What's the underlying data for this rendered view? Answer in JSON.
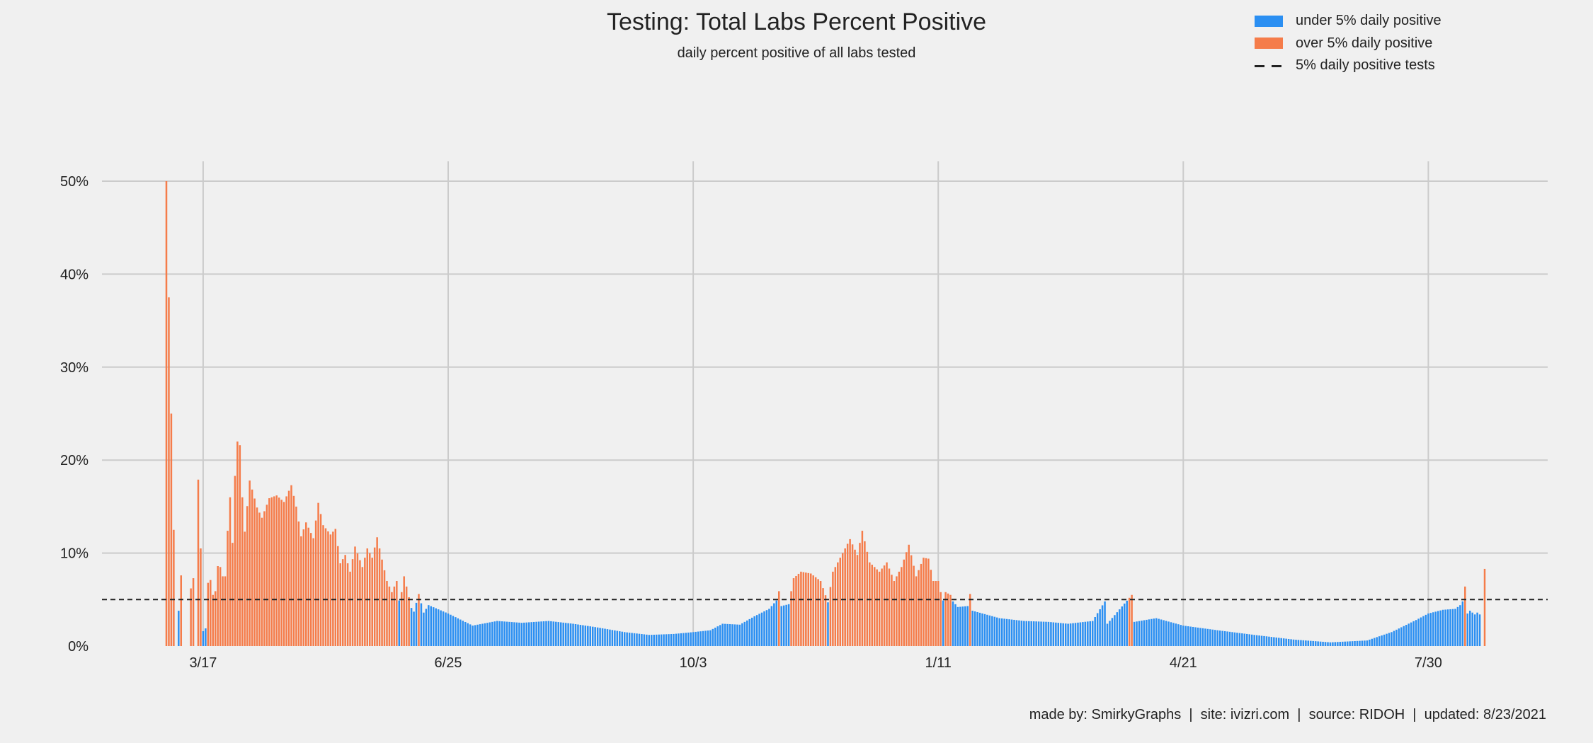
{
  "chart_data": {
    "type": "bar",
    "title": "Testing: Total Labs Percent Positive",
    "subtitle": "daily percent positive of all labs tested",
    "xlabel": "",
    "ylabel": "",
    "x_ticks": [
      "3/17",
      "6/25",
      "10/3",
      "1/11",
      "4/21",
      "7/30"
    ],
    "y_ticks": [
      "0%",
      "10%",
      "20%",
      "30%",
      "40%",
      "50%"
    ],
    "ylim": [
      0,
      52
    ],
    "threshold": 5,
    "grid": true,
    "legend_position": "top-right",
    "start_date": "2020-03-02",
    "end_date": "2021-08-22",
    "colors": {
      "under": "#2b8ff2",
      "over": "#f57c4a",
      "threshold": "#222222",
      "grid": "#cbcbcb"
    },
    "series": [
      {
        "name": "under 5% daily positive",
        "color": "#2b8ff2"
      },
      {
        "name": "over 5% daily positive",
        "color": "#f57c4a"
      }
    ],
    "reference_line": {
      "name": "5% daily positive tests",
      "value": 5
    },
    "anchors": [
      [
        "2020-03-02",
        50
      ],
      [
        "2020-03-06",
        0
      ],
      [
        "2020-03-08",
        7.6
      ],
      [
        "2020-03-09",
        0
      ],
      [
        "2020-03-11",
        0
      ],
      [
        "2020-03-12",
        6.2
      ],
      [
        "2020-03-13",
        7.3
      ],
      [
        "2020-03-14",
        0
      ],
      [
        "2020-03-15",
        17.9
      ],
      [
        "2020-03-16",
        10.5
      ],
      [
        "2020-03-17",
        1.6
      ],
      [
        "2020-03-18",
        1.9
      ],
      [
        "2020-03-19",
        6.8
      ],
      [
        "2020-03-20",
        7.1
      ],
      [
        "2020-03-21",
        5.5
      ],
      [
        "2020-03-22",
        5.9
      ],
      [
        "2020-03-23",
        8.6
      ],
      [
        "2020-03-24",
        8.5
      ],
      [
        "2020-03-25",
        7.5
      ],
      [
        "2020-03-26",
        7.5
      ],
      [
        "2020-03-27",
        12.4
      ],
      [
        "2020-03-28",
        16.0
      ],
      [
        "2020-03-29",
        11.1
      ],
      [
        "2020-03-30",
        18.3
      ],
      [
        "2020-03-31",
        22.0
      ],
      [
        "2020-04-01",
        21.6
      ],
      [
        "2020-04-02",
        16.0
      ],
      [
        "2020-04-03",
        12.3
      ],
      [
        "2020-04-05",
        17.8
      ],
      [
        "2020-04-08",
        14.9
      ],
      [
        "2020-04-10",
        13.8
      ],
      [
        "2020-04-13",
        15.9
      ],
      [
        "2020-04-16",
        16.2
      ],
      [
        "2020-04-19",
        15.5
      ],
      [
        "2020-04-22",
        17.3
      ],
      [
        "2020-04-24",
        15.0
      ],
      [
        "2020-04-26",
        11.8
      ],
      [
        "2020-04-28",
        13.3
      ],
      [
        "2020-05-01",
        11.6
      ],
      [
        "2020-05-03",
        15.4
      ],
      [
        "2020-05-05",
        13.0
      ],
      [
        "2020-05-08",
        12.0
      ],
      [
        "2020-05-10",
        12.6
      ],
      [
        "2020-05-12",
        8.9
      ],
      [
        "2020-05-14",
        9.8
      ],
      [
        "2020-05-16",
        8.0
      ],
      [
        "2020-05-18",
        10.7
      ],
      [
        "2020-05-21",
        8.5
      ],
      [
        "2020-05-23",
        10.5
      ],
      [
        "2020-05-25",
        9.5
      ],
      [
        "2020-05-27",
        11.7
      ],
      [
        "2020-05-29",
        9.3
      ],
      [
        "2020-05-31",
        7.0
      ],
      [
        "2020-06-02",
        5.8
      ],
      [
        "2020-06-04",
        7.0
      ],
      [
        "2020-06-05",
        4.9
      ],
      [
        "2020-06-06",
        5.8
      ],
      [
        "2020-06-07",
        7.5
      ],
      [
        "2020-06-08",
        6.4
      ],
      [
        "2020-06-10",
        4.1
      ],
      [
        "2020-06-11",
        3.7
      ],
      [
        "2020-06-13",
        5.6
      ],
      [
        "2020-06-15",
        3.6
      ],
      [
        "2020-06-17",
        4.4
      ],
      [
        "2020-06-25",
        3.5
      ],
      [
        "2020-07-05",
        2.2
      ],
      [
        "2020-07-15",
        2.7
      ],
      [
        "2020-07-25",
        2.5
      ],
      [
        "2020-08-05",
        2.7
      ],
      [
        "2020-08-15",
        2.4
      ],
      [
        "2020-08-25",
        2.0
      ],
      [
        "2020-09-05",
        1.5
      ],
      [
        "2020-09-15",
        1.2
      ],
      [
        "2020-09-25",
        1.3
      ],
      [
        "2020-10-03",
        1.5
      ],
      [
        "2020-10-10",
        1.7
      ],
      [
        "2020-10-15",
        2.4
      ],
      [
        "2020-10-22",
        2.3
      ],
      [
        "2020-10-28",
        3.2
      ],
      [
        "2020-11-03",
        4.0
      ],
      [
        "2020-11-06",
        4.9
      ],
      [
        "2020-11-07",
        5.9
      ],
      [
        "2020-11-08",
        4.3
      ],
      [
        "2020-11-11",
        4.5
      ],
      [
        "2020-11-13",
        7.3
      ],
      [
        "2020-11-16",
        8.0
      ],
      [
        "2020-11-20",
        7.8
      ],
      [
        "2020-11-24",
        7.0
      ],
      [
        "2020-11-27",
        4.7
      ],
      [
        "2020-11-29",
        8.0
      ],
      [
        "2020-12-03",
        10.0
      ],
      [
        "2020-12-06",
        11.5
      ],
      [
        "2020-12-09",
        9.8
      ],
      [
        "2020-12-11",
        12.4
      ],
      [
        "2020-12-14",
        9.0
      ],
      [
        "2020-12-18",
        8.0
      ],
      [
        "2020-12-21",
        9.0
      ],
      [
        "2020-12-24",
        7.0
      ],
      [
        "2020-12-27",
        8.5
      ],
      [
        "2020-12-30",
        10.9
      ],
      [
        "2021-01-02",
        7.5
      ],
      [
        "2021-01-05",
        9.5
      ],
      [
        "2021-01-07",
        9.4
      ],
      [
        "2021-01-09",
        7.0
      ],
      [
        "2021-01-11",
        7.0
      ],
      [
        "2021-01-12",
        5.8
      ],
      [
        "2021-01-13",
        4.9
      ],
      [
        "2021-01-14",
        5.8
      ],
      [
        "2021-01-16",
        5.5
      ],
      [
        "2021-01-17",
        4.8
      ],
      [
        "2021-01-19",
        4.2
      ],
      [
        "2021-01-23",
        4.3
      ],
      [
        "2021-01-24",
        5.6
      ],
      [
        "2021-01-25",
        3.8
      ],
      [
        "2021-02-05",
        3.0
      ],
      [
        "2021-02-15",
        2.7
      ],
      [
        "2021-02-25",
        2.6
      ],
      [
        "2021-03-05",
        2.4
      ],
      [
        "2021-03-15",
        2.7
      ],
      [
        "2021-03-20",
        4.8
      ],
      [
        "2021-03-21",
        2.4
      ],
      [
        "2021-03-31",
        5.5
      ],
      [
        "2021-04-01",
        2.6
      ],
      [
        "2021-04-10",
        3.0
      ],
      [
        "2021-04-21",
        2.2
      ],
      [
        "2021-05-05",
        1.7
      ],
      [
        "2021-05-20",
        1.2
      ],
      [
        "2021-06-05",
        0.7
      ],
      [
        "2021-06-20",
        0.4
      ],
      [
        "2021-07-05",
        0.6
      ],
      [
        "2021-07-15",
        1.5
      ],
      [
        "2021-07-25",
        2.8
      ],
      [
        "2021-07-30",
        3.5
      ],
      [
        "2021-08-05",
        3.9
      ],
      [
        "2021-08-10",
        4.0
      ],
      [
        "2021-08-12",
        4.4
      ],
      [
        "2021-08-13",
        4.8
      ],
      [
        "2021-08-14",
        6.4
      ],
      [
        "2021-08-15",
        3.5
      ],
      [
        "2021-08-16",
        3.8
      ],
      [
        "2021-08-18",
        3.4
      ],
      [
        "2021-08-19",
        3.6
      ],
      [
        "2021-08-20",
        3.4
      ],
      [
        "2021-08-21",
        0
      ],
      [
        "2021-08-22",
        8.3
      ]
    ]
  },
  "legend": {
    "under_label": "under 5% daily positive",
    "over_label": "over 5% daily positive",
    "threshold_label": "5% daily positive tests"
  },
  "footer": "made by: SmirkyGraphs  |  site: ivizri.com  |  source: RIDOH  |  updated: 8/23/2021"
}
